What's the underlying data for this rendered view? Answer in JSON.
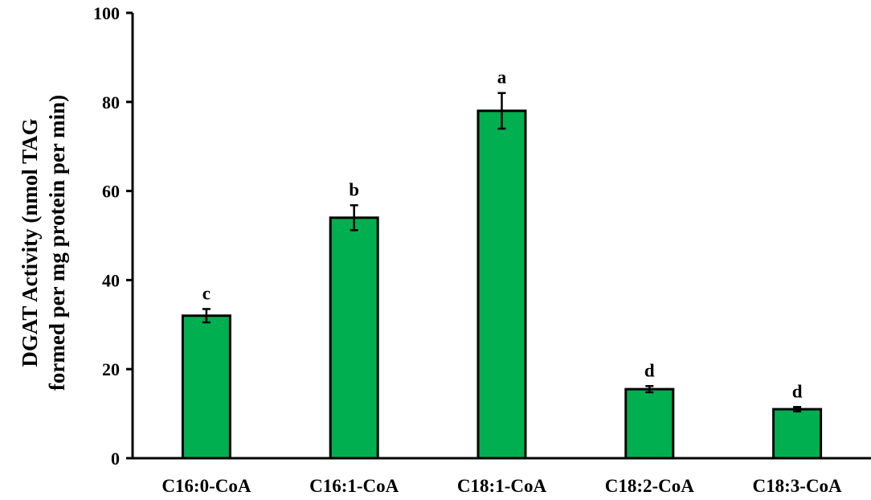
{
  "chart_data": {
    "type": "bar",
    "title": "",
    "xlabel": "",
    "ylabel_lines": [
      "DGAT Activity (nmol TAG",
      "formed per mg protein per min)"
    ],
    "ylim": [
      0,
      100
    ],
    "yticks": [
      0,
      20,
      40,
      60,
      80,
      100
    ],
    "grid": false,
    "legend": "none",
    "bar_color": "#00B050",
    "categories": [
      "C16:0-CoA",
      "C16:1-CoA",
      "C18:1-CoA",
      "C18:2-CoA",
      "C18:3-CoA"
    ],
    "values": [
      32,
      54,
      78,
      15.5,
      11
    ],
    "errors": [
      1.5,
      2.8,
      4,
      0.7,
      0.5
    ],
    "significance": [
      "c",
      "b",
      "a",
      "d",
      "d"
    ]
  }
}
